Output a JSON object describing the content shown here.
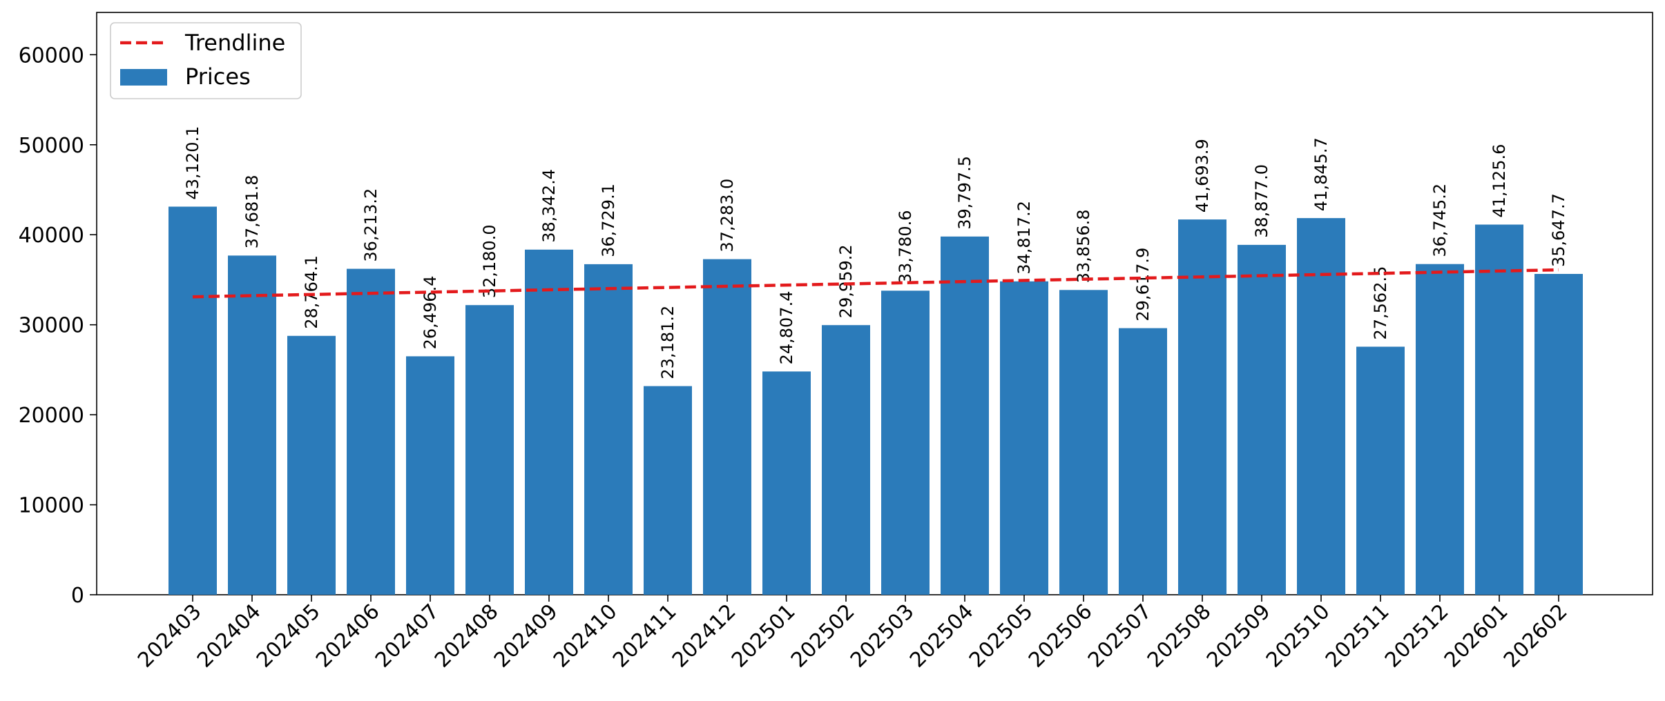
{
  "chart_data": {
    "type": "bar",
    "categories": [
      "202403",
      "202404",
      "202405",
      "202406",
      "202407",
      "202408",
      "202409",
      "202410",
      "202411",
      "202412",
      "202501",
      "202502",
      "202503",
      "202504",
      "202505",
      "202506",
      "202507",
      "202508",
      "202509",
      "202510",
      "202511",
      "202512",
      "202601",
      "202602"
    ],
    "series": [
      {
        "name": "Prices",
        "color": "#2b7bba",
        "values": [
          43120.1,
          37681.8,
          28764.1,
          36213.2,
          26496.4,
          32180.0,
          38342.4,
          36729.1,
          23181.2,
          37283.0,
          24807.4,
          29959.2,
          33780.6,
          39797.5,
          34817.2,
          33856.8,
          29617.9,
          41693.9,
          38877.0,
          41845.7,
          27562.5,
          36745.2,
          41125.6,
          35647.7
        ],
        "value_labels": [
          "43,120.1",
          "37,681.8",
          "28,764.1",
          "36,213.2",
          "26,496.4",
          "32,180.0",
          "38,342.4",
          "36,729.1",
          "23,181.2",
          "37,283.0",
          "24,807.4",
          "29,959.2",
          "33,780.6",
          "39,797.5",
          "34,817.2",
          "33,856.8",
          "29,617.9",
          "41,693.9",
          "38,877.0",
          "41,845.7",
          "27,562.5",
          "36,745.2",
          "41,125.6",
          "35,647.7"
        ]
      }
    ],
    "trendline": {
      "name": "Trendline",
      "color": "#e31a1c",
      "style": "dashed",
      "start_value": 33100,
      "end_value": 36100
    },
    "title": "",
    "xlabel": "",
    "ylabel": "",
    "ylim": [
      0,
      64700
    ],
    "yticks": [
      0,
      10000,
      20000,
      30000,
      40000,
      50000,
      60000
    ],
    "ytick_labels": [
      "0",
      "10000",
      "20000",
      "30000",
      "40000",
      "50000",
      "60000"
    ],
    "grid": false,
    "legend_position": "top-left",
    "legend": [
      {
        "label": "Trendline",
        "kind": "line",
        "color": "#e31a1c"
      },
      {
        "label": "Prices",
        "kind": "patch",
        "color": "#2b7bba"
      }
    ]
  }
}
